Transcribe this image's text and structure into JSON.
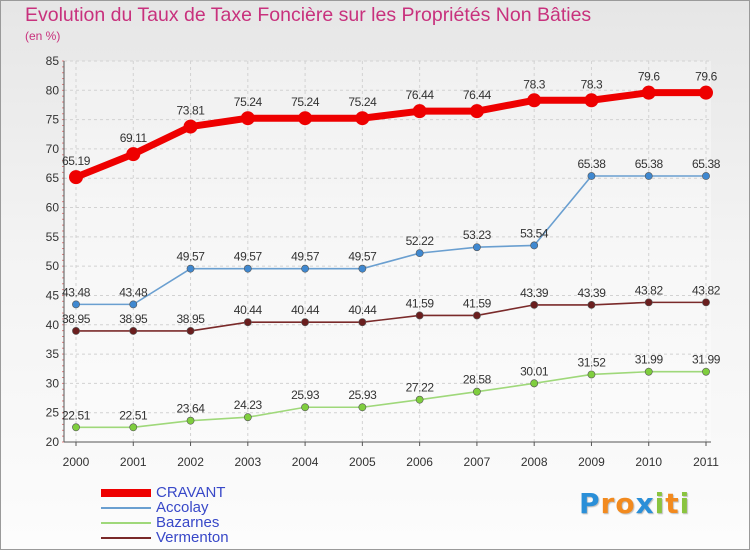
{
  "title": "Evolution du Taux de Taxe Foncière sur les Propriétés Non Bâties",
  "unit_label": "(en %)",
  "logo": {
    "letters": [
      "P",
      "r",
      "o",
      "x",
      "i",
      "t",
      "i"
    ],
    "colors": [
      "#2a8fd8",
      "#f28a1e",
      "#f28a1e",
      "#2a8fd8",
      "#8ac43f",
      "#f28a1e",
      "#8ac43f"
    ]
  },
  "chart_data": {
    "type": "line",
    "title": "Evolution du Taux de Taxe Foncière sur les Propriétés Non Bâties",
    "ylabel": "(en %)",
    "xlabel": "",
    "categories": [
      "2000",
      "2001",
      "2002",
      "2003",
      "2004",
      "2005",
      "2006",
      "2007",
      "2008",
      "2009",
      "2010",
      "2011"
    ],
    "ylim": [
      20,
      85
    ],
    "yticks": [
      20,
      25,
      30,
      35,
      40,
      45,
      50,
      55,
      60,
      65,
      70,
      75,
      80,
      85
    ],
    "grid": true,
    "legend_position": "bottom-left",
    "series": [
      {
        "name": "CRAVANT",
        "color": "#ee0000",
        "values": [
          65.19,
          69.11,
          73.81,
          75.24,
          75.24,
          75.24,
          76.44,
          76.44,
          78.3,
          78.3,
          79.6,
          79.6
        ],
        "labels": [
          "65.19",
          "69.11",
          "73.81",
          "75.24",
          "75.24",
          "75.24",
          "76.44",
          "76.44",
          "78.3",
          "78.3",
          "79.6",
          "79.6"
        ]
      },
      {
        "name": "Accolay",
        "color": "#6a9fd0",
        "marker": "#3f88d0",
        "values": [
          43.48,
          43.48,
          49.57,
          49.57,
          49.57,
          49.57,
          52.22,
          53.23,
          53.54,
          65.38,
          65.38,
          65.38
        ],
        "labels": [
          "43.48",
          "43.48",
          "49.57",
          "49.57",
          "49.57",
          "49.57",
          "52.22",
          "53.23",
          "53.54",
          "65.38",
          "65.38",
          "65.38"
        ]
      },
      {
        "name": "Bazarnes",
        "color": "#9fd87a",
        "marker": "#7fce3e",
        "values": [
          22.51,
          22.51,
          23.64,
          24.23,
          25.93,
          25.93,
          27.22,
          28.58,
          30.01,
          31.52,
          31.99,
          31.99
        ],
        "labels": [
          "22.51",
          "22.51",
          "23.64",
          "24.23",
          "25.93",
          "25.93",
          "27.22",
          "28.58",
          "30.01",
          "31.52",
          "31.99",
          "31.99"
        ]
      },
      {
        "name": "Vermenton",
        "color": "#7a2a2a",
        "marker": "#6a1e1e",
        "values": [
          38.95,
          38.95,
          38.95,
          40.44,
          40.44,
          40.44,
          41.59,
          41.59,
          43.39,
          43.39,
          43.82,
          43.82
        ],
        "labels": [
          "38.95",
          "38.95",
          "38.95",
          "40.44",
          "40.44",
          "40.44",
          "41.59",
          "41.59",
          "43.39",
          "43.39",
          "43.82",
          "43.82"
        ]
      }
    ]
  }
}
